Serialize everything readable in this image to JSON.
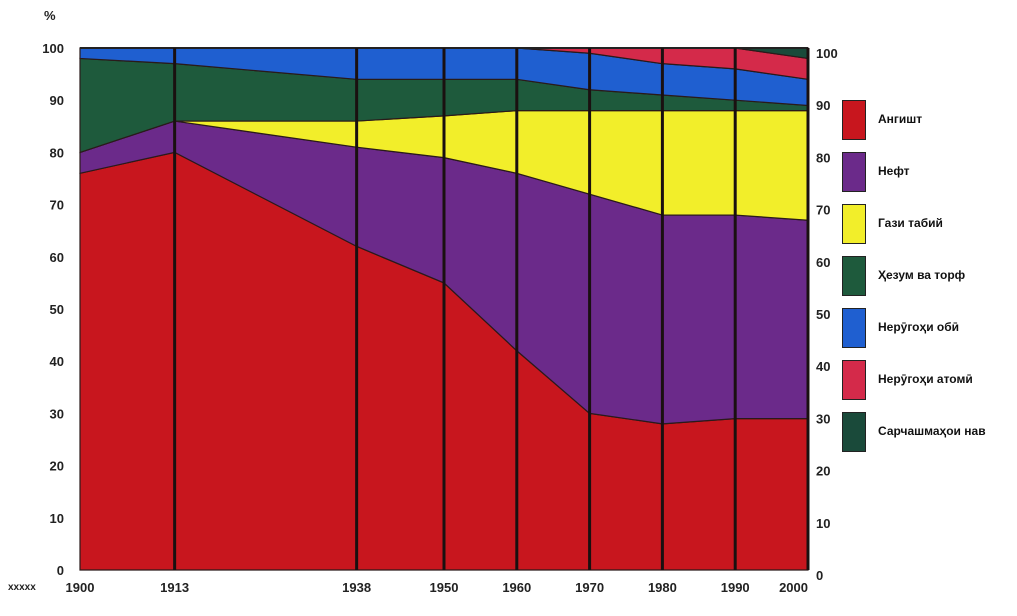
{
  "chart_data": {
    "type": "area",
    "stacked": true,
    "x": [
      1900,
      1913,
      1938,
      1950,
      1960,
      1970,
      1980,
      1990,
      2000
    ],
    "x_tick_labels": [
      "1900",
      "1913",
      "1938",
      "1950",
      "1960",
      "1970",
      "1980",
      "1990",
      "2000"
    ],
    "y_unit": "%",
    "ylim": [
      0,
      100
    ],
    "y_ticks": [
      "0",
      "10",
      "20",
      "30",
      "40",
      "50",
      "60",
      "70",
      "80",
      "90",
      "100"
    ],
    "right_y_ticks": [
      "0",
      "10",
      "20",
      "30",
      "40",
      "50",
      "60",
      "70",
      "80",
      "90",
      "100"
    ],
    "legend_position": "right",
    "series": [
      {
        "name": "Ангишт",
        "color": "#c8161e",
        "values": [
          76,
          80,
          62,
          55,
          42,
          30,
          28,
          29,
          29
        ]
      },
      {
        "name": "Нефт",
        "color": "#6b2a8a",
        "values": [
          4,
          6,
          19,
          24,
          34,
          42,
          40,
          39,
          38
        ]
      },
      {
        "name": "Гази табий",
        "color": "#f2ee2a",
        "values": [
          0,
          0,
          5,
          8,
          12,
          16,
          20,
          20,
          21
        ]
      },
      {
        "name": "Ҳезум ва торф",
        "color": "#1e5a3c",
        "values": [
          18,
          11,
          8,
          7,
          6,
          4,
          3,
          2,
          1
        ]
      },
      {
        "name": "Нерӯгоҳи обӣ",
        "color": "#1f5fd0",
        "values": [
          2,
          3,
          6,
          6,
          6,
          7,
          6,
          6,
          5
        ]
      },
      {
        "name": "Нерӯгоҳи атомӣ",
        "color": "#d42a4a",
        "values": [
          0,
          0,
          0,
          0,
          0,
          1,
          3,
          4,
          4
        ]
      },
      {
        "name": "Сарчашмаҳои нав",
        "color": "#1a4a3a",
        "values": [
          0,
          0,
          0,
          0,
          0,
          0,
          0,
          0,
          2
        ]
      }
    ]
  }
}
